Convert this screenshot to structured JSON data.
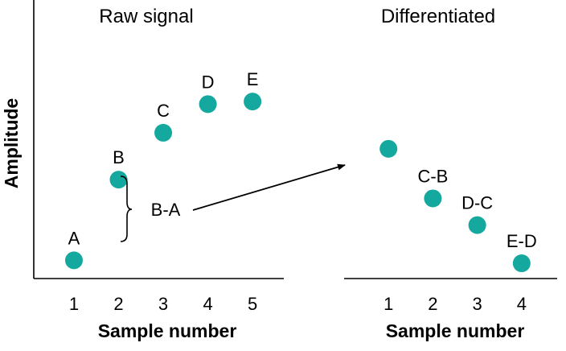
{
  "chart_data": [
    {
      "type": "scatter",
      "title": "Raw signal",
      "xlabel": "Sample number",
      "ylabel": "Amplitude",
      "x": [
        1,
        2,
        3,
        4,
        5
      ],
      "y": [
        1.0,
        4.1,
        5.9,
        7.0,
        7.1
      ],
      "point_labels": [
        "A",
        "B",
        "C",
        "D",
        "E"
      ],
      "xlim": [
        0.1,
        5.7
      ],
      "ylim": [
        0.3,
        11.0
      ],
      "grid": false,
      "color": "#14a89e",
      "annotation": {
        "text": "B-A"
      }
    },
    {
      "type": "scatter",
      "title": "Differentiated",
      "xlabel": "Sample number",
      "x": [
        1,
        2,
        3,
        4
      ],
      "y": [
        3.1,
        1.8,
        1.1,
        0.1
      ],
      "point_labels": [
        "",
        "C-B",
        "D-C",
        "E-D"
      ],
      "xlim": [
        0.0,
        4.8
      ],
      "ylim": [
        -0.3,
        7.0
      ],
      "grid": false,
      "color": "#14a89e"
    }
  ]
}
